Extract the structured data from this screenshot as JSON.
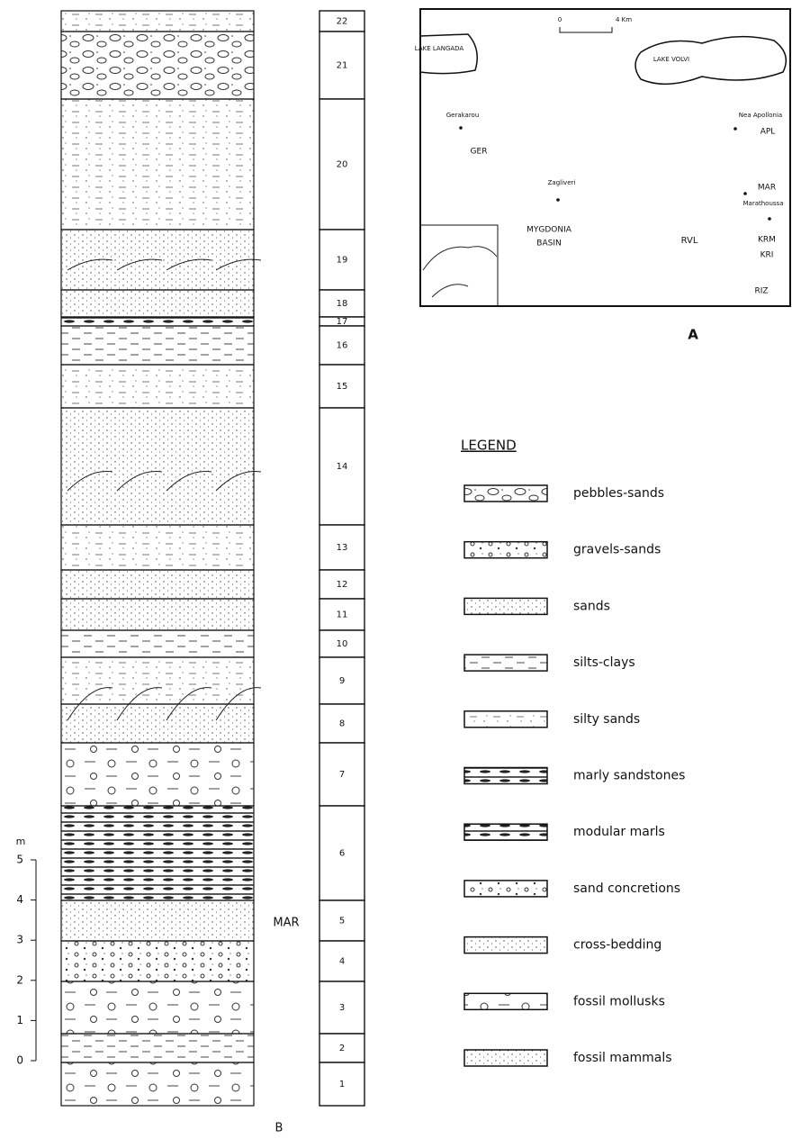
{
  "column": {
    "layers": [
      "22",
      "21",
      "20",
      "19",
      "18",
      "17",
      "16",
      "15",
      "14",
      "13",
      "12",
      "11",
      "10",
      "9",
      "8",
      "7",
      "6",
      "5",
      "4",
      "3",
      "2",
      "1"
    ],
    "scale_unit": "m",
    "scale_ticks": [
      "5",
      "4",
      "3",
      "2",
      "1",
      "0"
    ],
    "site_label": "MAR",
    "panel_label": "B"
  },
  "map": {
    "labels": [
      "LAKE LANGADA",
      "LAKE VOLVI",
      "0",
      "4 Km",
      "Gerakarou",
      "GER",
      "Nea Apollonia",
      "APL",
      "Zagliveri",
      "MAR",
      "Marathoussa",
      "KRM",
      "KRI",
      "RVL",
      "RIZ",
      "MYGDONIA",
      "BASIN"
    ],
    "panel_label": "A"
  },
  "legend": {
    "title": "LEGEND",
    "items": [
      "pebbles-sands",
      "gravels-sands",
      "sands",
      "silts-clays",
      "silty sands",
      "marly sandstones",
      "modular marls",
      "sand concretions",
      "cross-bedding",
      "fossil mollusks",
      "fossil mammals"
    ]
  }
}
